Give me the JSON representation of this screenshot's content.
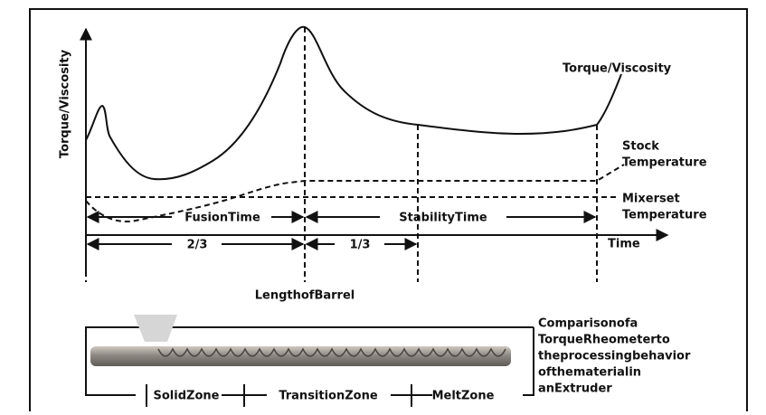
{
  "axis": {
    "y_label": "Torque/Viscosity",
    "x_label": "Time"
  },
  "curves": {
    "torque": "Torque/Viscosity",
    "stock": [
      "Stock",
      "Temperature"
    ],
    "mixer": [
      "Mixerset",
      "Temperature"
    ]
  },
  "intervals": {
    "fusion": "FusionTime",
    "stability": "StabilityTime",
    "first": "2/3",
    "second": "1/3"
  },
  "barrel_label": "LengthofBarrel",
  "zones": [
    "SolidZone",
    "TransitionZone",
    "MeltZone"
  ],
  "caption": [
    "Comparisonofa",
    "TorqueRheometerto",
    "theprocessingbehavior",
    "ofthematerialin",
    "anExtruder"
  ]
}
